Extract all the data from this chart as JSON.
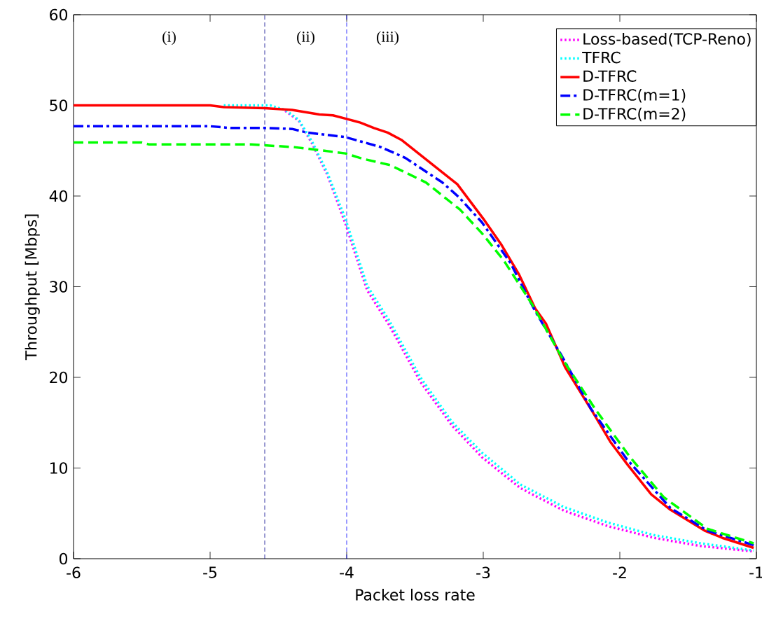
{
  "chart_data": {
    "type": "line",
    "xlabel": "Packet loss rate",
    "ylabel": "Throughput [Mbps]",
    "xlim": [
      -6,
      -1
    ],
    "ylim": [
      0,
      60
    ],
    "xticks": [
      -6,
      -5,
      -4,
      -3,
      -2,
      -1
    ],
    "yticks": [
      0,
      10,
      20,
      30,
      40,
      50,
      60
    ],
    "grid": false,
    "legend": "top right",
    "marker": "none",
    "series": [
      {
        "name": "Loss-based(TCP-Reno)",
        "color": "#ff00ff",
        "line_style": "dotted",
        "x": [
          -4.45,
          -4.35,
          -4.25,
          -4.14,
          -4.01,
          -3.85,
          -3.69,
          -3.46,
          -3.23,
          -3.01,
          -2.73,
          -2.41,
          -2.09,
          -1.75,
          -1.41,
          -1.02
        ],
        "values": [
          49.4,
          48.3,
          45.7,
          42.3,
          37.0,
          29.6,
          25.8,
          19.5,
          14.7,
          11.2,
          7.8,
          5.3,
          3.6,
          2.3,
          1.4,
          0.8
        ]
      },
      {
        "name": "TFRC",
        "color": "#00ffff",
        "line_style": "dotted",
        "x": [
          -4.9,
          -4.56,
          -4.45,
          -4.35,
          -4.25,
          -4.14,
          -4.01,
          -3.85,
          -3.69,
          -3.46,
          -3.23,
          -3.01,
          -2.73,
          -2.41,
          -2.09,
          -1.75,
          -1.41,
          -1.02
        ],
        "values": [
          50,
          50,
          49.5,
          48.4,
          45.9,
          42.5,
          37.5,
          30.1,
          26.3,
          20.0,
          15.1,
          11.7,
          8.2,
          5.7,
          4.0,
          2.6,
          1.7,
          0.9
        ]
      },
      {
        "name": "D-TFRC",
        "color": "#ff0000",
        "line_style": "solid",
        "x": [
          -6,
          -5,
          -4.9,
          -4.6,
          -4.4,
          -4.2,
          -4.1,
          -4.0,
          -3.9,
          -3.8,
          -3.7,
          -3.6,
          -3.19,
          -3.0,
          -2.87,
          -2.74,
          -2.62,
          -2.54,
          -2.4,
          -2.2,
          -2.07,
          -1.94,
          -1.77,
          -1.63,
          -1.38,
          -1.25,
          -1.02
        ],
        "values": [
          50,
          50,
          49.8,
          49.7,
          49.5,
          49.0,
          48.9,
          48.5,
          48.1,
          47.5,
          47.0,
          46.2,
          41.3,
          37.5,
          34.7,
          31.4,
          27.6,
          25.9,
          21.1,
          16.2,
          12.9,
          10.3,
          7.1,
          5.4,
          3.1,
          2.3,
          1.2
        ]
      },
      {
        "name": "D-TFRC(m=1)",
        "color": "#0000ff",
        "line_style": "dashdot",
        "x": [
          -6,
          -5,
          -4.85,
          -4.6,
          -4.4,
          -4.29,
          -4.01,
          -3.75,
          -3.57,
          -3.3,
          -3.18,
          -3.01,
          -2.8,
          -2.62,
          -2.43,
          -2.21,
          -1.95,
          -1.63,
          -1.36,
          -1.02
        ],
        "values": [
          47.7,
          47.7,
          47.5,
          47.5,
          47.4,
          47.0,
          46.5,
          45.4,
          44.2,
          41.5,
          39.9,
          37.1,
          32.6,
          27.3,
          22.5,
          16.5,
          11.0,
          5.6,
          3.1,
          1.5
        ]
      },
      {
        "name": "D-TFRC(m=2)",
        "color": "#00ff00",
        "line_style": "dashed",
        "x": [
          -6,
          -5.5,
          -5.45,
          -4.7,
          -4.61,
          -4.39,
          -4.22,
          -4.01,
          -3.88,
          -3.68,
          -3.57,
          -3.42,
          -3.17,
          -3.01,
          -2.85,
          -2.64,
          -2.41,
          -2.18,
          -1.93,
          -1.68,
          -1.36,
          -1.02
        ],
        "values": [
          45.9,
          45.9,
          45.7,
          45.7,
          45.6,
          45.4,
          45.1,
          44.7,
          44.1,
          43.4,
          42.6,
          41.5,
          38.5,
          35.9,
          32.9,
          28.0,
          21.8,
          16.5,
          11.3,
          6.8,
          3.3,
          1.7
        ]
      }
    ],
    "ref_lines": [
      {
        "axis": "x",
        "value": -4.6,
        "color": "#00008b",
        "line_style": "dashed"
      },
      {
        "axis": "x",
        "value": -4,
        "color": "#0000ff",
        "line_style": "dashed"
      }
    ],
    "annotations": [
      "(i)",
      "(ii)",
      "(iii)"
    ]
  }
}
